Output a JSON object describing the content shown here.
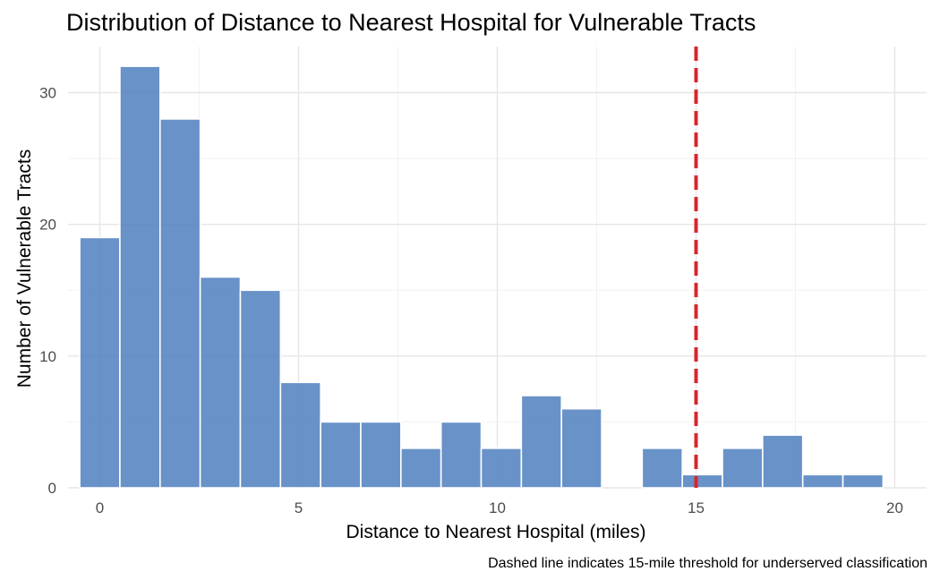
{
  "chart_data": {
    "type": "bar",
    "subtype": "histogram",
    "title": "Distribution of Distance to Nearest Hospital for Vulnerable Tracts",
    "xlabel": "Distance to Nearest Hospital (miles)",
    "ylabel": "Number of Vulnerable Tracts",
    "caption": "Dashed line indicates 15-mile threshold for underserved classification",
    "xlim": [
      -0.8,
      20.8
    ],
    "ylim": [
      0,
      33.5
    ],
    "x_ticks": [
      0,
      5,
      10,
      15,
      20
    ],
    "x_tick_labels": [
      "0",
      "5",
      "10",
      "15",
      "20"
    ],
    "y_ticks": [
      0,
      10,
      20,
      30
    ],
    "y_tick_labels": [
      "0",
      "10",
      "20",
      "30"
    ],
    "bin_width": 1.0105,
    "bins": [
      {
        "center": 0.0,
        "count": 19
      },
      {
        "center": 1.01,
        "count": 32
      },
      {
        "center": 2.02,
        "count": 28
      },
      {
        "center": 3.03,
        "count": 16
      },
      {
        "center": 4.04,
        "count": 15
      },
      {
        "center": 5.05,
        "count": 8
      },
      {
        "center": 6.06,
        "count": 5
      },
      {
        "center": 7.07,
        "count": 5
      },
      {
        "center": 8.08,
        "count": 3
      },
      {
        "center": 9.09,
        "count": 5
      },
      {
        "center": 10.1,
        "count": 3
      },
      {
        "center": 11.11,
        "count": 7
      },
      {
        "center": 12.12,
        "count": 6
      },
      {
        "center": 13.14,
        "count": 0
      },
      {
        "center": 14.15,
        "count": 3
      },
      {
        "center": 15.16,
        "count": 1
      },
      {
        "center": 16.17,
        "count": 3
      },
      {
        "center": 17.18,
        "count": 4
      },
      {
        "center": 18.19,
        "count": 1
      },
      {
        "center": 19.2,
        "count": 1
      }
    ],
    "reference_line": {
      "x": 15,
      "style": "dashed",
      "color": "#d7262b"
    },
    "bar_color": "#4e7fbe",
    "bar_opacity": 0.85,
    "grid": true,
    "legend": "none"
  }
}
